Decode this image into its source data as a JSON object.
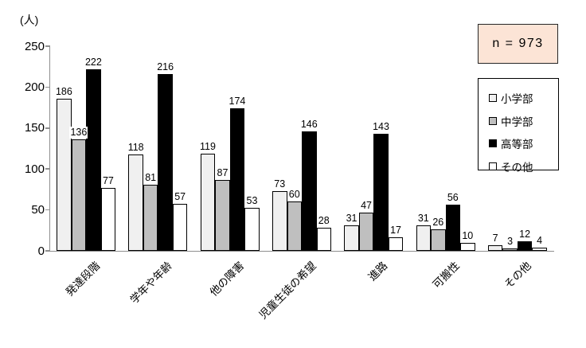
{
  "chart_data": {
    "type": "bar",
    "ylabel": "(人)",
    "annotation": "n = 973",
    "annotation_bg_color": "#fce4d6",
    "categories": [
      "発達段階",
      "学年や年齢",
      "他の障害",
      "児童生徒の希望",
      "進路",
      "可搬性",
      "その他"
    ],
    "series": [
      {
        "name": "小学部",
        "color": "#f0f0f0",
        "values": [
          186,
          118,
          119,
          73,
          31,
          31,
          7
        ]
      },
      {
        "name": "中学部",
        "color": "#bfbfbf",
        "values": [
          136,
          81,
          87,
          60,
          47,
          26,
          3
        ]
      },
      {
        "name": "高等部",
        "color": "#000000",
        "values": [
          222,
          216,
          174,
          146,
          143,
          56,
          12
        ]
      },
      {
        "name": "その他",
        "color": "#ffffff",
        "values": [
          77,
          57,
          53,
          28,
          17,
          10,
          4
        ]
      }
    ],
    "ylim": [
      0,
      250
    ],
    "yticks": [
      0,
      50,
      100,
      150,
      200,
      250
    ],
    "grid": false,
    "legend_position": "right",
    "bar_border_color": "#000000",
    "axis_color": "#8f8f8f"
  }
}
